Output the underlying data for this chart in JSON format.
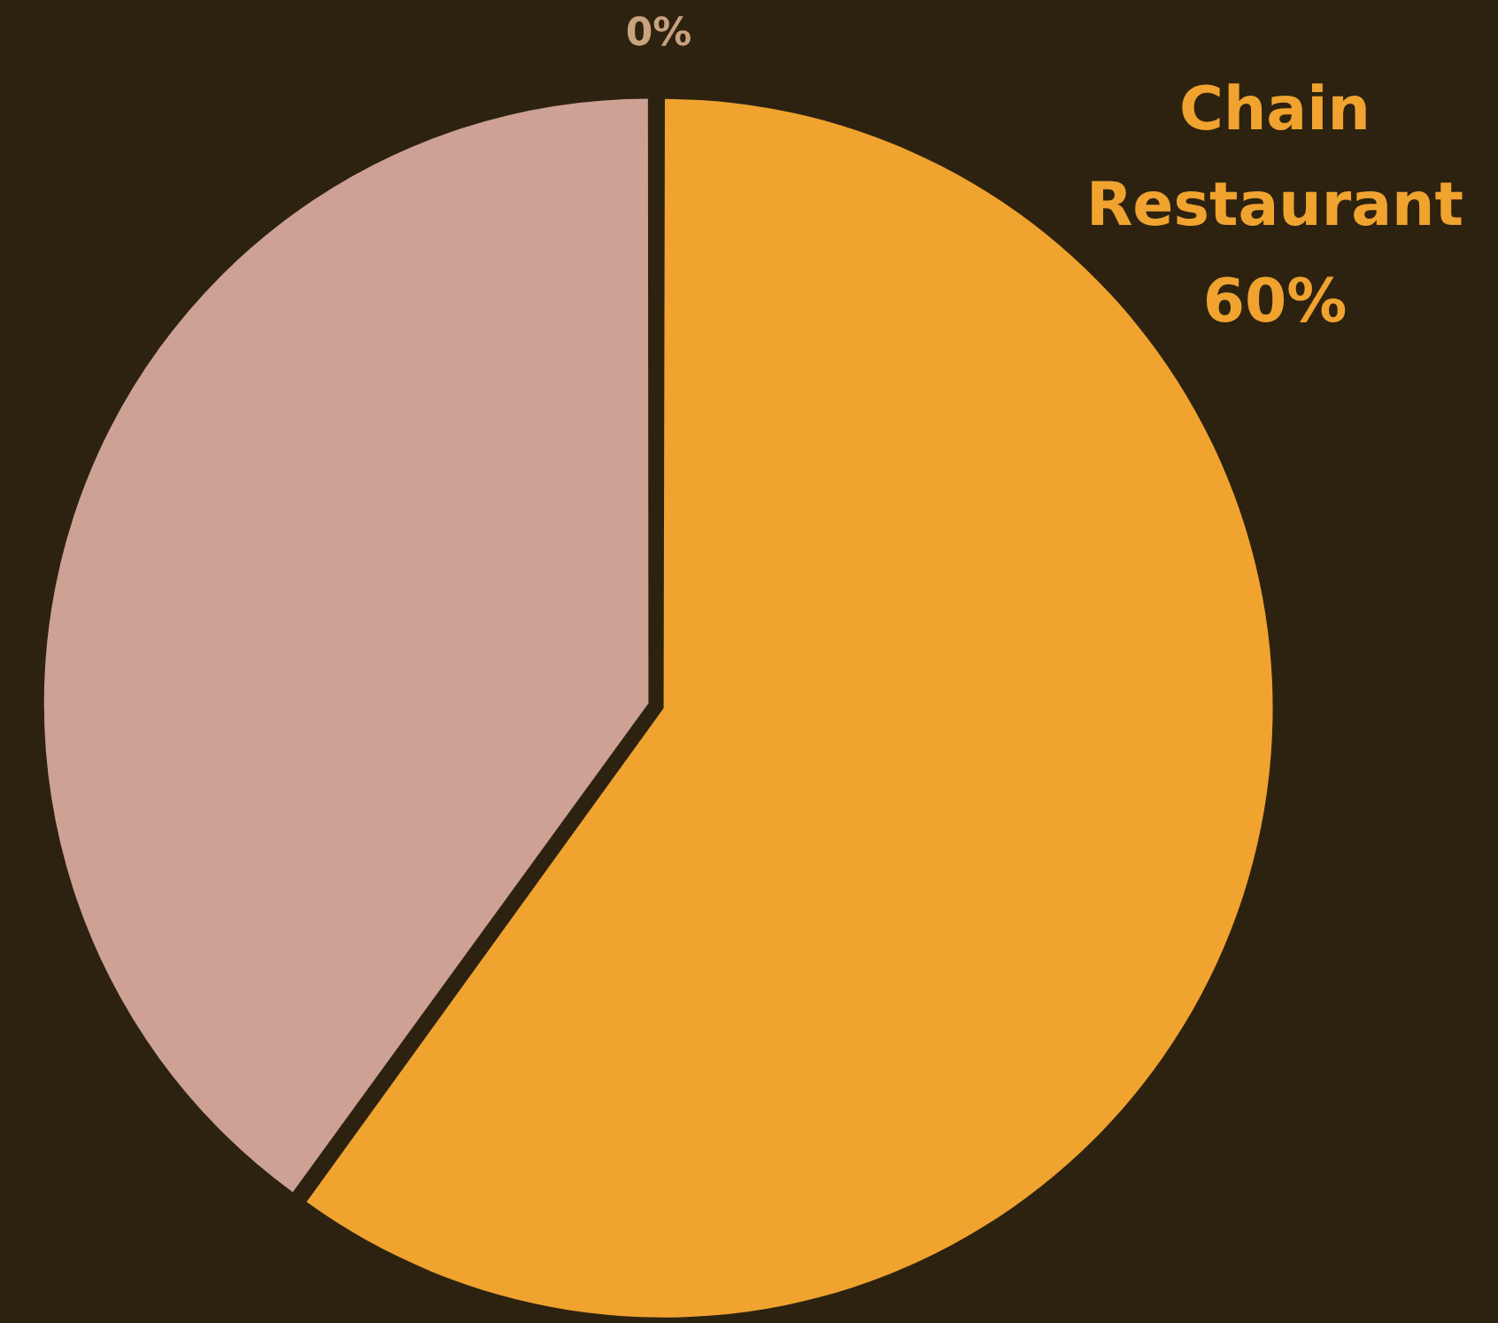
{
  "chart_data": {
    "type": "pie",
    "categories": [
      "Chain Restaurant",
      null,
      null
    ],
    "values": [
      60,
      40,
      0
    ],
    "colors": [
      "#f0a32f",
      "#cda194",
      "#c9a27e"
    ],
    "value_labels": [
      "60%",
      null,
      "0%"
    ],
    "legend": false
  }
}
